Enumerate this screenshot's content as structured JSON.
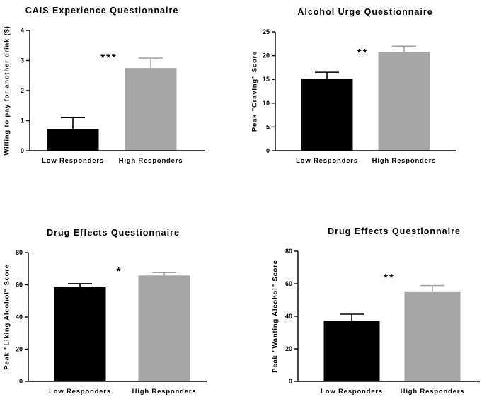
{
  "chart_data": [
    {
      "type": "bar",
      "title": "CAIS Experience Questionnaire",
      "xlabel": "",
      "ylabel": "Willing to pay for another drink ($)",
      "categories": [
        "Low Responders",
        "High Responders"
      ],
      "values": [
        0.72,
        2.75
      ],
      "errors": [
        0.38,
        0.33
      ],
      "colors": [
        "#000000",
        "#a6a6a6"
      ],
      "ylim": [
        0,
        4
      ],
      "yticks": [
        0,
        1,
        2,
        3,
        4
      ],
      "significance": "***",
      "grid": false,
      "legend": "none"
    },
    {
      "type": "bar",
      "title": "Alcohol Urge Questionnaire",
      "xlabel": "",
      "ylabel": "Peak \"Craving\" Score",
      "categories": [
        "Low Responders",
        "High Responders"
      ],
      "values": [
        15.1,
        20.8
      ],
      "errors": [
        1.4,
        1.2
      ],
      "colors": [
        "#000000",
        "#a6a6a6"
      ],
      "ylim": [
        0,
        25
      ],
      "yticks": [
        0,
        5,
        10,
        15,
        20,
        25
      ],
      "significance": "**",
      "grid": false,
      "legend": "none"
    },
    {
      "type": "bar",
      "title": "Drug Effects Questionnaire",
      "xlabel": "",
      "ylabel": "Peak \"Liking Alcohol\" Score",
      "categories": [
        "Low Responders",
        "High Responders"
      ],
      "values": [
        58.5,
        65.8
      ],
      "errors": [
        2.2,
        1.8
      ],
      "colors": [
        "#000000",
        "#a6a6a6"
      ],
      "ylim": [
        0,
        80
      ],
      "yticks": [
        0,
        20,
        40,
        60,
        80
      ],
      "significance": "*",
      "grid": false,
      "legend": "none"
    },
    {
      "type": "bar",
      "title": "Drug Effects Questionnaire",
      "xlabel": "",
      "ylabel": "Peak \"Wanting Alcohol\" Score",
      "categories": [
        "Low Responders",
        "High Responders"
      ],
      "values": [
        37.3,
        55.3
      ],
      "errors": [
        4.0,
        3.6
      ],
      "colors": [
        "#000000",
        "#a6a6a6"
      ],
      "ylim": [
        0,
        80
      ],
      "yticks": [
        0,
        20,
        40,
        60,
        80
      ],
      "significance": "**",
      "grid": false,
      "legend": "none"
    }
  ]
}
